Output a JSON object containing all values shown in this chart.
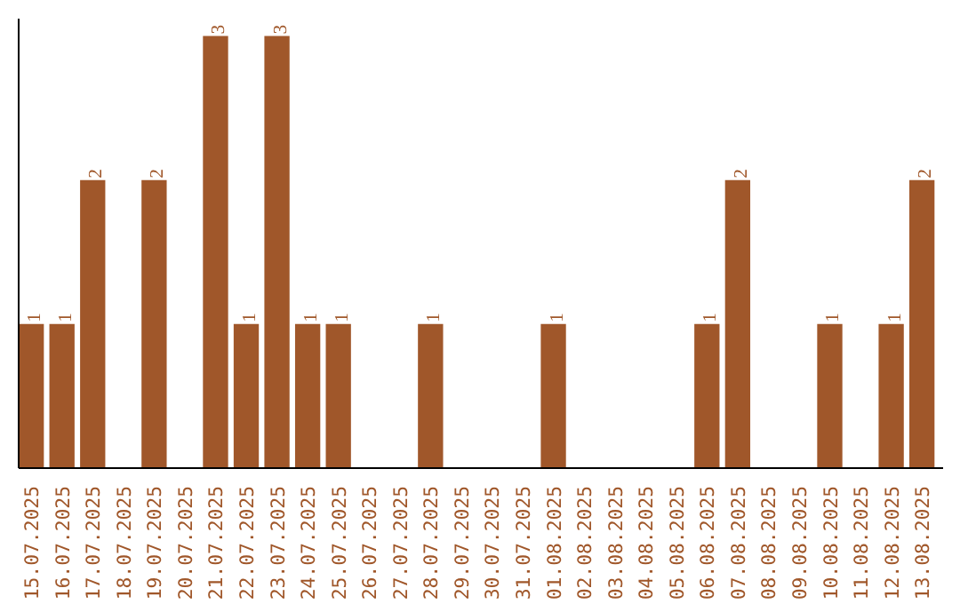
{
  "chart_data": {
    "type": "bar",
    "categories": [
      "15.07.2025",
      "16.07.2025",
      "17.07.2025",
      "18.07.2025",
      "19.07.2025",
      "20.07.2025",
      "21.07.2025",
      "22.07.2025",
      "23.07.2025",
      "24.07.2025",
      "25.07.2025",
      "26.07.2025",
      "27.07.2025",
      "28.07.2025",
      "29.07.2025",
      "30.07.2025",
      "31.07.2025",
      "01.08.2025",
      "02.08.2025",
      "03.08.2025",
      "04.08.2025",
      "05.08.2025",
      "06.08.2025",
      "07.08.2025",
      "08.08.2025",
      "09.08.2025",
      "10.08.2025",
      "11.08.2025",
      "12.08.2025",
      "13.08.2025"
    ],
    "values": [
      1,
      1,
      2,
      0,
      2,
      0,
      3,
      1,
      3,
      1,
      1,
      0,
      0,
      1,
      0,
      0,
      0,
      1,
      0,
      0,
      0,
      0,
      1,
      2,
      0,
      0,
      1,
      0,
      1,
      2
    ],
    "value_labels": [
      "1",
      "1",
      "2",
      null,
      "2",
      null,
      "3",
      "1",
      "3",
      "1",
      "1",
      null,
      null,
      "1",
      null,
      null,
      null,
      "1",
      null,
      null,
      null,
      null,
      "1",
      "2",
      null,
      null,
      "1",
      null,
      "1",
      "2"
    ],
    "color": "#a0572a"
  }
}
